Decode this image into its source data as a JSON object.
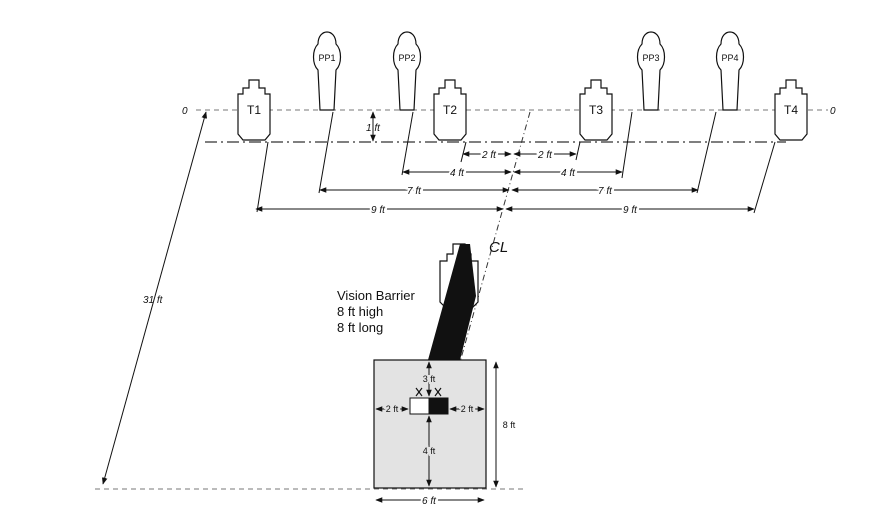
{
  "diagram": {
    "zero_left": "0",
    "zero_right": "0",
    "targets": [
      "T1",
      "T2",
      "T3",
      "T4"
    ],
    "poppers": [
      "PP1",
      "PP2",
      "PP3",
      "PP4"
    ],
    "dims": {
      "one_ft": "1 ft",
      "two_ft": "2 ft",
      "four_ft": "4 ft",
      "seven_ft": "7 ft",
      "nine_ft": "9 ft",
      "thirty_one_ft": "31 ft",
      "three_ft": "3 ft",
      "eight_ft": "8 ft",
      "six_ft": "6 ft"
    },
    "centerline": "CL",
    "barrier": {
      "line1": "Vision Barrier",
      "line2": "8 ft high",
      "line3": "8 ft long"
    },
    "colors": {
      "ink": "#111111",
      "box_fill": "#e3e3e3",
      "dashed": "#777777"
    }
  }
}
